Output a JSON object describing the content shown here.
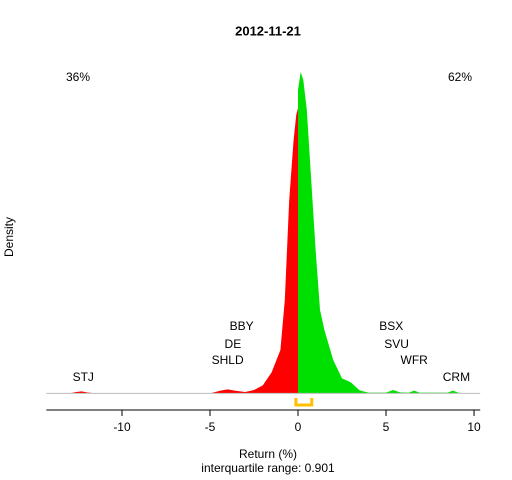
{
  "chart_data": {
    "type": "density",
    "title": "2012-11-21",
    "x_label": "Return (%)",
    "y_label": "Density",
    "subtitle": "interquartile range: 0.901",
    "xlim": [
      -14.3,
      10.35
    ],
    "ylim": [
      -0.05,
      1.0
    ],
    "xticks": [
      -10,
      -5,
      0,
      5,
      10
    ],
    "series": [
      {
        "color": "#ff0000",
        "x": [
          -13,
          -12.6,
          -12.3,
          -12.0,
          -11.5,
          -5,
          -4.4,
          -4.0,
          -3.6,
          -3,
          -2.5,
          -2,
          -1.5,
          -1.0,
          -0.75,
          -0.5,
          -0.25,
          -0.1,
          0,
          0
        ],
        "values": [
          0,
          0.004,
          0.006,
          0.003,
          0,
          0,
          0.008,
          0.012,
          0.008,
          0.004,
          0.01,
          0.024,
          0.063,
          0.13,
          0.28,
          0.58,
          0.76,
          0.835,
          0.856,
          0
        ]
      },
      {
        "color": "#00e000",
        "x": [
          0,
          0,
          0.15,
          0.3,
          0.5,
          0.75,
          1.0,
          1.25,
          1.5,
          2.0,
          2.5,
          3.0,
          3.5,
          4.0,
          5.0,
          5.4,
          5.8,
          6.3,
          6.6,
          6.9,
          8.5,
          8.8,
          9.1,
          9.5
        ],
        "values": [
          0,
          0.91,
          0.964,
          0.94,
          0.85,
          0.64,
          0.43,
          0.25,
          0.19,
          0.1,
          0.045,
          0.033,
          0.009,
          0.002,
          0.002,
          0.01,
          0.003,
          0.002,
          0.008,
          0.002,
          0.002,
          0.008,
          0.002,
          0
        ]
      }
    ],
    "left_share": "36%",
    "right_share": "62%",
    "labels": [
      {
        "text": "STJ",
        "x": -12.2
      },
      {
        "text": "SHLD",
        "x": -4.0
      },
      {
        "text": "DE",
        "x": -3.7
      },
      {
        "text": "BBY",
        "x": -3.2
      },
      {
        "text": "BSX",
        "x": 5.3
      },
      {
        "text": "SVU",
        "x": 5.6
      },
      {
        "text": "WFR",
        "x": 6.6
      },
      {
        "text": "CRM",
        "x": 9.0
      }
    ],
    "iqr_bracket": [
      -0.12,
      0.78
    ],
    "iqr_color": "#ffc000"
  }
}
